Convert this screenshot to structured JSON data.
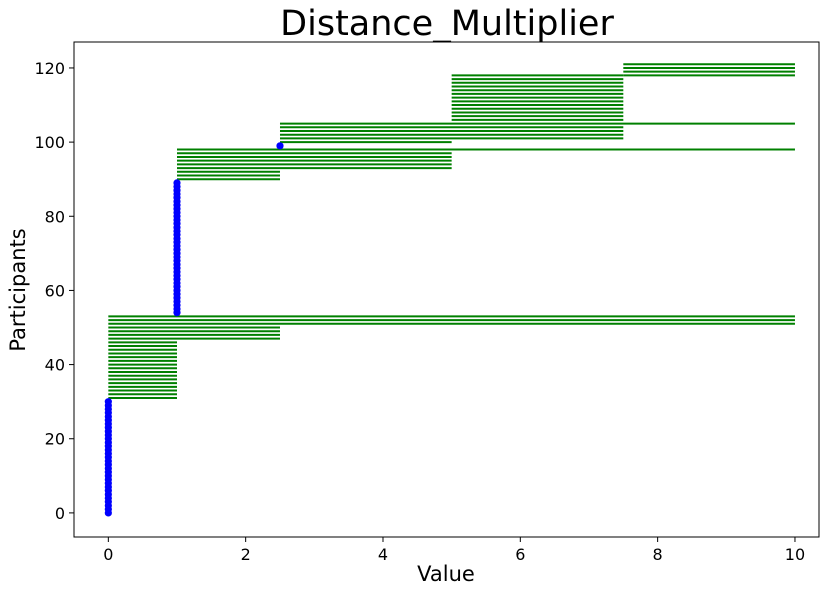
{
  "chart_data": {
    "type": "scatter",
    "title": "Distance_Multiplier",
    "xlabel": "Value",
    "ylabel": "Participants",
    "xlim": [
      -0.5,
      10.35
    ],
    "ylim": [
      -6.5,
      127
    ],
    "xticks": [
      0,
      2,
      4,
      6,
      8,
      10
    ],
    "yticks": [
      0,
      20,
      40,
      60,
      80,
      100,
      120
    ],
    "grid": false,
    "colors": {
      "points": "#0000ff",
      "intervals": "#008000"
    },
    "points": {
      "name": "",
      "groups": [
        {
          "x": 0.0,
          "y_from": 0,
          "y_to": 30
        },
        {
          "x": 1.0,
          "y_from": 54,
          "y_to": 89
        },
        {
          "x": 2.5,
          "y_from": 99,
          "y_to": 99
        }
      ]
    },
    "intervals": {
      "name": "",
      "groups": [
        {
          "x_start": 0.0,
          "x_end": 1.0,
          "y_from": 31,
          "y_to": 46
        },
        {
          "x_start": 0.0,
          "x_end": 2.5,
          "y_from": 47,
          "y_to": 50
        },
        {
          "x_start": 0.0,
          "x_end": 10.0,
          "y_from": 51,
          "y_to": 53
        },
        {
          "x_start": 1.0,
          "x_end": 2.5,
          "y_from": 90,
          "y_to": 92
        },
        {
          "x_start": 1.0,
          "x_end": 5.0,
          "y_from": 93,
          "y_to": 97
        },
        {
          "x_start": 1.0,
          "x_end": 10.0,
          "y_from": 98,
          "y_to": 98
        },
        {
          "x_start": 2.5,
          "x_end": 5.0,
          "y_from": 100,
          "y_to": 100
        },
        {
          "x_start": 2.5,
          "x_end": 7.5,
          "y_from": 101,
          "y_to": 104
        },
        {
          "x_start": 2.5,
          "x_end": 10.0,
          "y_from": 105,
          "y_to": 105
        },
        {
          "x_start": 5.0,
          "x_end": 7.5,
          "y_from": 106,
          "y_to": 118
        },
        {
          "x_start": 7.5,
          "x_end": 10.0,
          "y_from": 118,
          "y_to": 121
        }
      ]
    }
  }
}
